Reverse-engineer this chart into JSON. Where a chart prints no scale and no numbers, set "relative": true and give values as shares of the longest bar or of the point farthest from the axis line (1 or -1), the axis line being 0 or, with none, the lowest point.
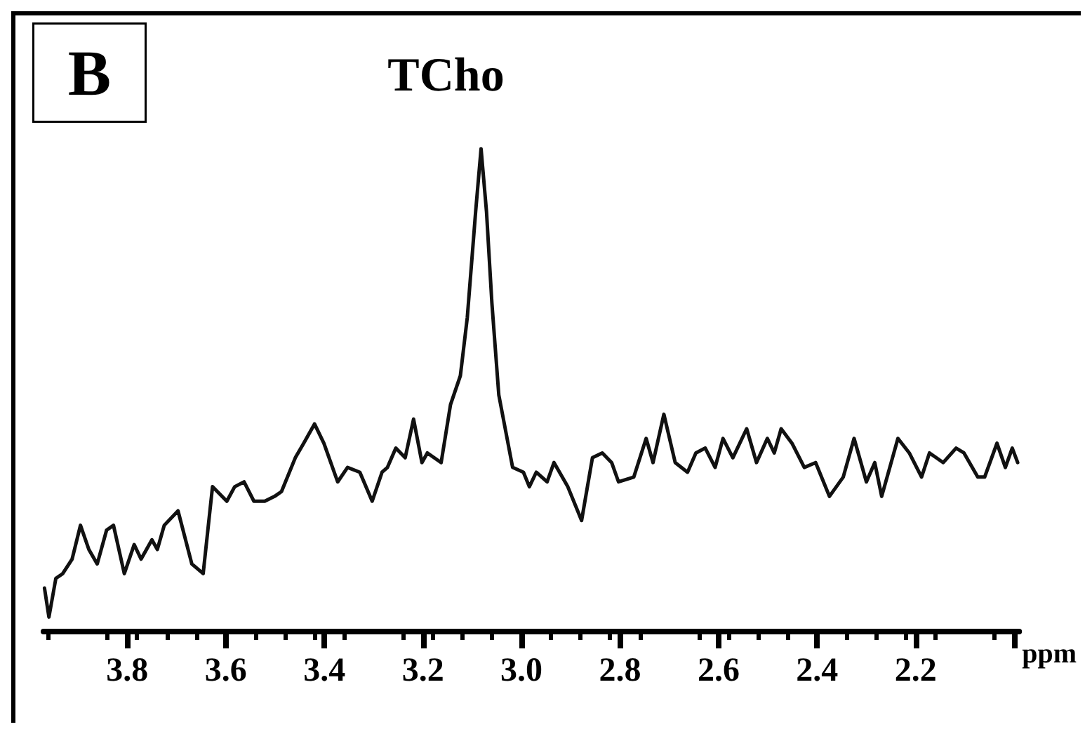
{
  "chart_data": {
    "type": "line",
    "relative": true,
    "xlabel": "ppm",
    "annotations": [
      "B",
      {
        "text": "TCho",
        "x": 3.082,
        "y": 1
      }
    ],
    "xlim": [
      3.97,
      1.99
    ],
    "xticks": [
      3.8,
      3.6,
      3.4,
      3.2,
      {
        "value": 3.0,
        "label": "3.0"
      },
      2.8,
      2.6,
      2.4,
      2.2,
      {
        "value": 2.0,
        "label": null
      }
    ],
    "marker": "none",
    "line_style": "solid",
    "series": [
      {
        "color": "#111111",
        "x": [
          3.968,
          3.959,
          3.945,
          3.931,
          3.912,
          3.895,
          3.878,
          3.861,
          3.842,
          3.828,
          3.806,
          3.786,
          3.772,
          3.75,
          3.739,
          3.725,
          3.697,
          3.669,
          3.646,
          3.627,
          3.598,
          3.582,
          3.563,
          3.543,
          3.521,
          3.501,
          3.487,
          3.459,
          3.442,
          3.42,
          3.401,
          3.373,
          3.353,
          3.328,
          3.303,
          3.283,
          3.272,
          3.255,
          3.236,
          3.219,
          3.202,
          3.191,
          3.163,
          3.144,
          3.124,
          3.11,
          3.093,
          3.082,
          3.071,
          3.06,
          3.046,
          3.018,
          2.996,
          2.984,
          2.97,
          2.948,
          2.934,
          2.906,
          2.878,
          2.856,
          2.836,
          2.817,
          2.803,
          2.772,
          2.747,
          2.733,
          2.711,
          2.688,
          2.663,
          2.646,
          2.627,
          2.607,
          2.591,
          2.571,
          2.543,
          2.523,
          2.501,
          2.487,
          2.473,
          2.451,
          2.426,
          2.403,
          2.375,
          2.347,
          2.325,
          2.3,
          2.283,
          2.269,
          2.236,
          2.213,
          2.188,
          2.172,
          2.144,
          2.118,
          2.102,
          2.074,
          2.06,
          2.035,
          2.018,
          2.004,
          1.993
        ],
        "values": [
          0.09,
          0.03,
          0.11,
          0.12,
          0.15,
          0.22,
          0.17,
          0.14,
          0.21,
          0.22,
          0.12,
          0.18,
          0.15,
          0.19,
          0.17,
          0.22,
          0.25,
          0.14,
          0.12,
          0.3,
          0.27,
          0.3,
          0.31,
          0.27,
          0.27,
          0.28,
          0.29,
          0.36,
          0.39,
          0.43,
          0.39,
          0.31,
          0.34,
          0.33,
          0.27,
          0.33,
          0.34,
          0.38,
          0.36,
          0.44,
          0.35,
          0.37,
          0.35,
          0.47,
          0.53,
          0.65,
          0.87,
          1,
          0.87,
          0.68,
          0.49,
          0.34,
          0.33,
          0.3,
          0.33,
          0.31,
          0.35,
          0.3,
          0.23,
          0.36,
          0.37,
          0.35,
          0.31,
          0.32,
          0.4,
          0.35,
          0.45,
          0.35,
          0.33,
          0.37,
          0.38,
          0.34,
          0.4,
          0.36,
          0.42,
          0.35,
          0.4,
          0.37,
          0.42,
          0.39,
          0.34,
          0.35,
          0.28,
          0.32,
          0.4,
          0.31,
          0.35,
          0.28,
          0.4,
          0.37,
          0.32,
          0.37,
          0.35,
          0.38,
          0.37,
          0.32,
          0.32,
          0.39,
          0.34,
          0.38,
          0.35
        ]
      }
    ]
  }
}
